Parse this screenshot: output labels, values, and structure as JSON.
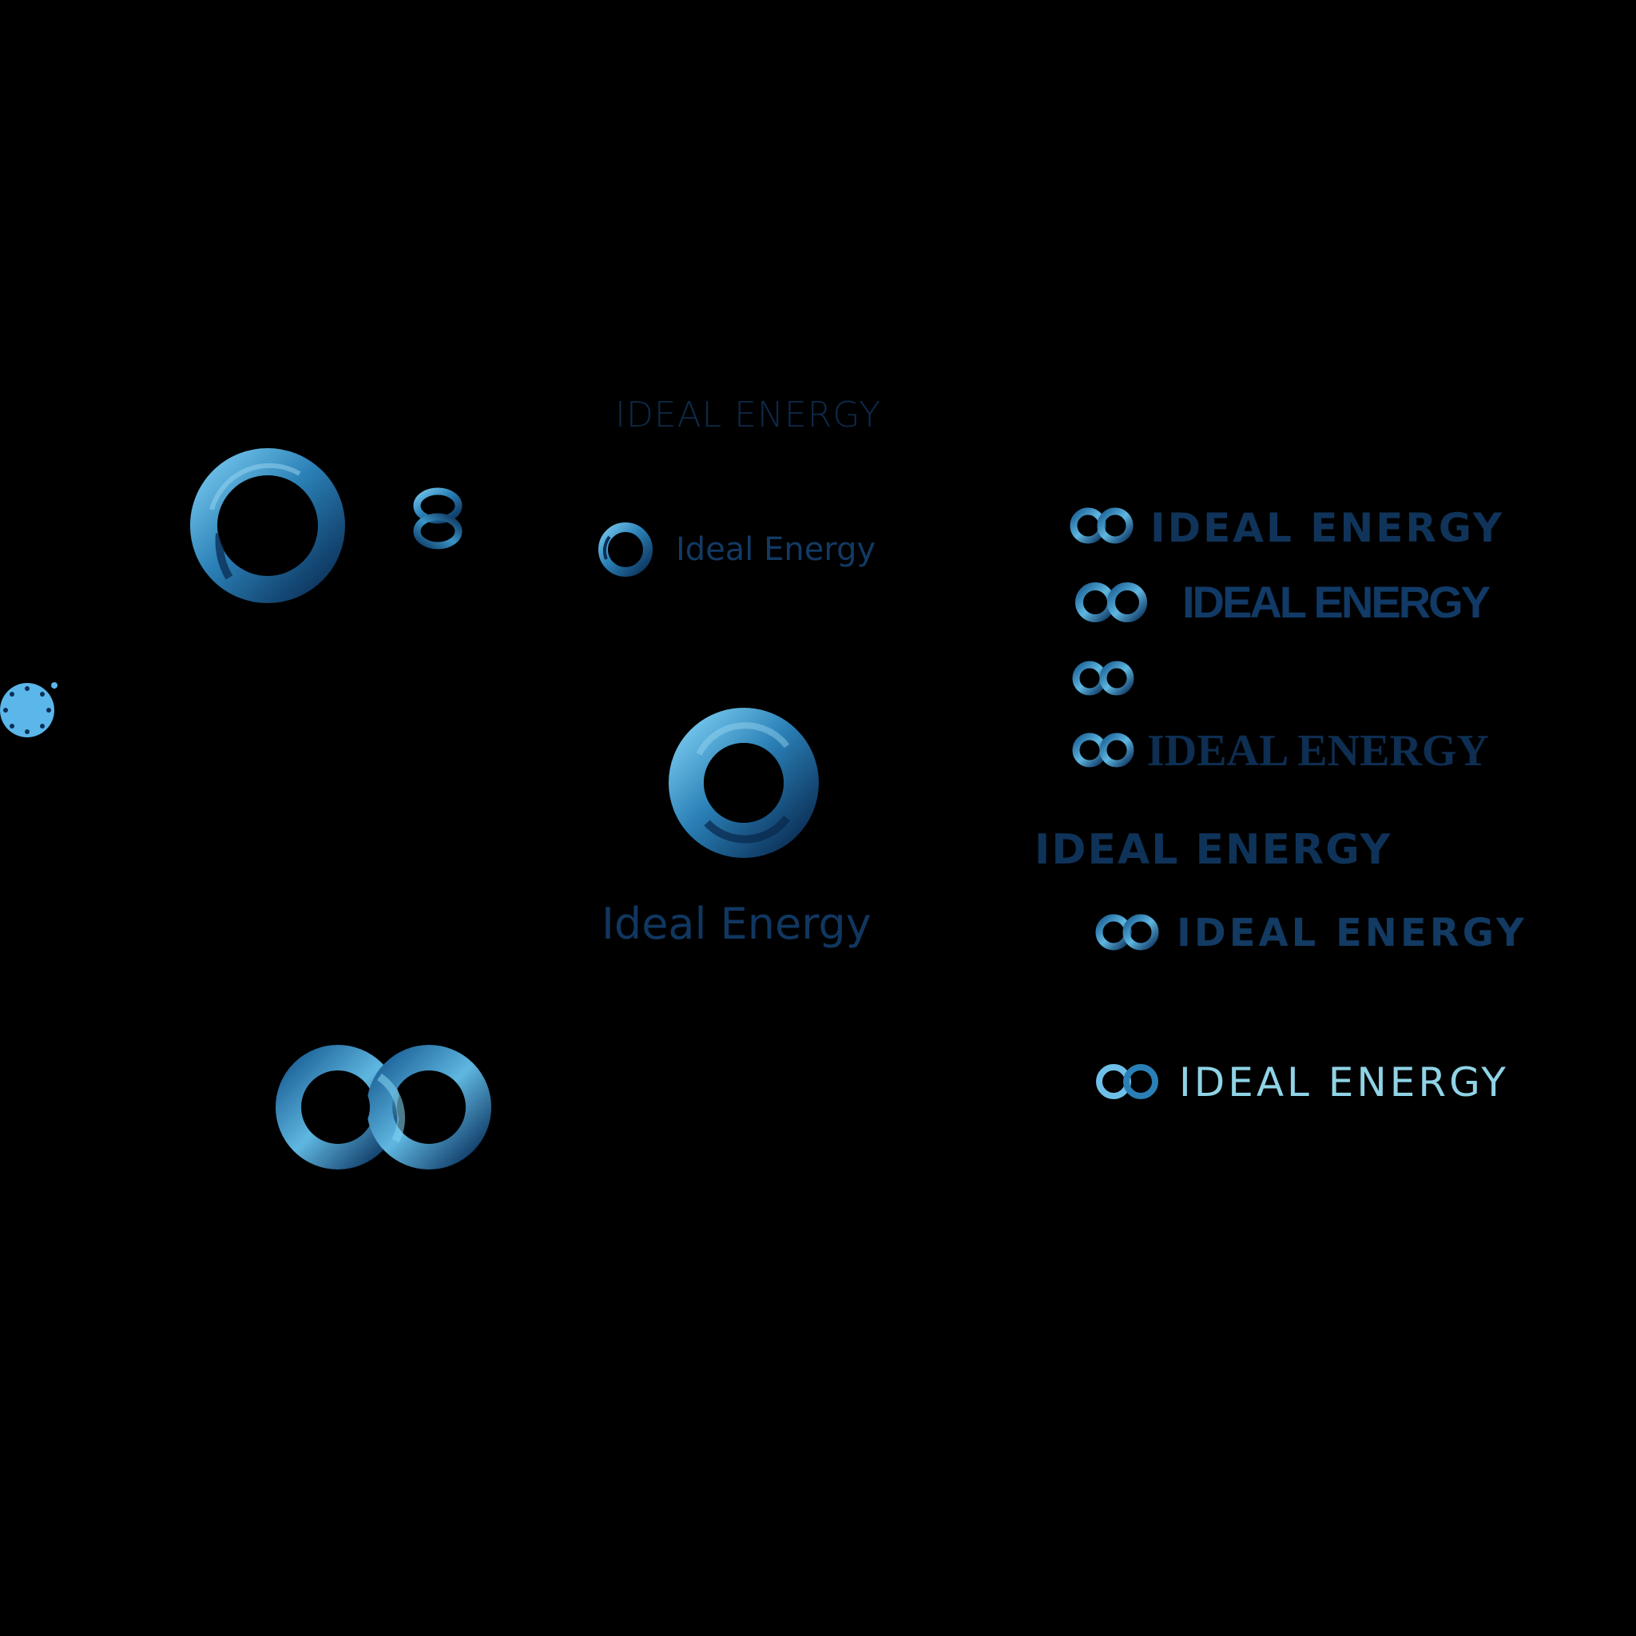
{
  "brand": {
    "title_top": "IDEAL ENERGY",
    "wordmark_rounded_small": "Ideal Energy",
    "wordmark_rounded_large": "Ideal Energy",
    "wordmarks": [
      "IDEAL ENERGY",
      "IDEAL ENERGY",
      "IDEAL ENERGY",
      "IDEAL ENERGY",
      "IDEAL ENERGY",
      "IDEAL ENERGY"
    ]
  },
  "icons": {
    "large_swirl": "swirl-ring-icon",
    "small_knot": "knot-icon",
    "small_swirl": "swirl-ring-icon",
    "center_ring": "ring-icon",
    "large_infinity": "infinity-icon",
    "small_infinity": "infinity-icon",
    "dotted_circle": "dotted-circle-icon"
  },
  "colors": {
    "background": "#000000",
    "ring_light": "#6fc0e8",
    "ring_mid": "#1f6fa3",
    "ring_dark": "#0b2f57",
    "text_dark_blue": "#103459",
    "text_light_cyan": "#8fd3e6",
    "dot_blue": "#5bb6ea"
  }
}
